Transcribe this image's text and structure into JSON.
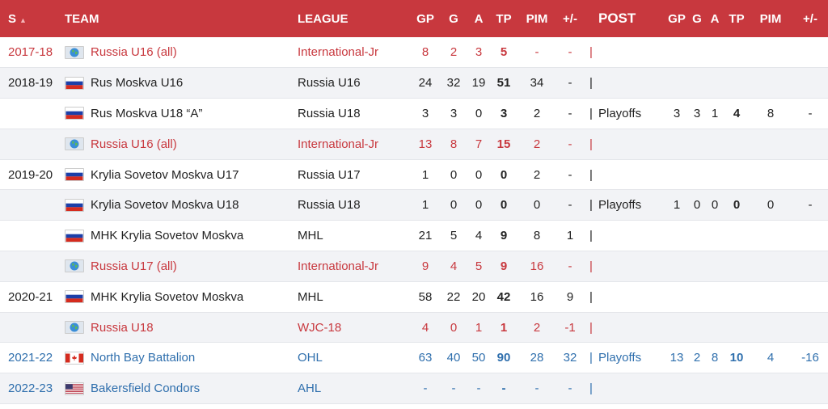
{
  "header": {
    "season": "S",
    "team": "TEAM",
    "league": "LEAGUE",
    "gp": "GP",
    "g": "G",
    "a": "A",
    "tp": "TP",
    "pim": "PIM",
    "pm": "+/-",
    "post": "POST",
    "pgp": "GP",
    "pg": "G",
    "pa": "A",
    "ptp": "TP",
    "ppim": "PIM",
    "ppm": "+/-"
  },
  "rows": [
    {
      "season": "2017-18",
      "flag": "globe",
      "team": "Russia U16 (all)",
      "league": "International-Jr",
      "gp": "8",
      "g": "2",
      "a": "3",
      "tp": "5",
      "pim": "-",
      "pm": "-",
      "sep": "|",
      "post": "",
      "pgp": "",
      "pg": "",
      "pa": "",
      "ptp": "",
      "ppim": "",
      "ppm": ""
    },
    {
      "season": "2018-19",
      "flag": "russia",
      "team": "Rus Moskva U16",
      "league": "Russia U16",
      "gp": "24",
      "g": "32",
      "a": "19",
      "tp": "51",
      "pim": "34",
      "pm": "-",
      "sep": "|",
      "post": "",
      "pgp": "",
      "pg": "",
      "pa": "",
      "ptp": "",
      "ppim": "",
      "ppm": ""
    },
    {
      "season": "",
      "flag": "russia",
      "team": "Rus Moskva U18 “A”",
      "league": "Russia U18",
      "gp": "3",
      "g": "3",
      "a": "0",
      "tp": "3",
      "pim": "2",
      "pm": "-",
      "sep": "|",
      "post": "Playoffs",
      "pgp": "3",
      "pg": "3",
      "pa": "1",
      "ptp": "4",
      "ppim": "8",
      "ppm": "-"
    },
    {
      "season": "",
      "flag": "globe",
      "team": "Russia U16 (all)",
      "league": "International-Jr",
      "gp": "13",
      "g": "8",
      "a": "7",
      "tp": "15",
      "pim": "2",
      "pm": "-",
      "sep": "|",
      "post": "",
      "pgp": "",
      "pg": "",
      "pa": "",
      "ptp": "",
      "ppim": "",
      "ppm": ""
    },
    {
      "season": "2019-20",
      "flag": "russia",
      "team": "Krylia Sovetov Moskva U17",
      "league": "Russia U17",
      "gp": "1",
      "g": "0",
      "a": "0",
      "tp": "0",
      "pim": "2",
      "pm": "-",
      "sep": "|",
      "post": "",
      "pgp": "",
      "pg": "",
      "pa": "",
      "ptp": "",
      "ppim": "",
      "ppm": ""
    },
    {
      "season": "",
      "flag": "russia",
      "team": "Krylia Sovetov Moskva U18",
      "league": "Russia U18",
      "gp": "1",
      "g": "0",
      "a": "0",
      "tp": "0",
      "pim": "0",
      "pm": "-",
      "sep": "|",
      "post": "Playoffs",
      "pgp": "1",
      "pg": "0",
      "pa": "0",
      "ptp": "0",
      "ppim": "0",
      "ppm": "-"
    },
    {
      "season": "",
      "flag": "russia",
      "team": "MHK Krylia Sovetov Moskva",
      "league": "MHL",
      "gp": "21",
      "g": "5",
      "a": "4",
      "tp": "9",
      "pim": "8",
      "pm": "1",
      "sep": "|",
      "post": "",
      "pgp": "",
      "pg": "",
      "pa": "",
      "ptp": "",
      "ppim": "",
      "ppm": ""
    },
    {
      "season": "",
      "flag": "globe",
      "team": "Russia U17 (all)",
      "league": "International-Jr",
      "gp": "9",
      "g": "4",
      "a": "5",
      "tp": "9",
      "pim": "16",
      "pm": "-",
      "sep": "|",
      "post": "",
      "pgp": "",
      "pg": "",
      "pa": "",
      "ptp": "",
      "ppim": "",
      "ppm": ""
    },
    {
      "season": "2020-21",
      "flag": "russia",
      "team": "MHK Krylia Sovetov Moskva",
      "league": "MHL",
      "gp": "58",
      "g": "22",
      "a": "20",
      "tp": "42",
      "pim": "16",
      "pm": "9",
      "sep": "|",
      "post": "",
      "pgp": "",
      "pg": "",
      "pa": "",
      "ptp": "",
      "ppim": "",
      "ppm": ""
    },
    {
      "season": "",
      "flag": "globe",
      "team": "Russia U18",
      "league": "WJC-18",
      "gp": "4",
      "g": "0",
      "a": "1",
      "tp": "1",
      "pim": "2",
      "pm": "-1",
      "sep": "|",
      "post": "",
      "pgp": "",
      "pg": "",
      "pa": "",
      "ptp": "",
      "ppim": "",
      "ppm": ""
    },
    {
      "season": "2021-22",
      "flag": "canada",
      "team": "North Bay Battalion",
      "league": "OHL",
      "gp": "63",
      "g": "40",
      "a": "50",
      "tp": "90",
      "pim": "28",
      "pm": "32",
      "sep": "|",
      "post": "Playoffs",
      "pgp": "13",
      "pg": "2",
      "pa": "8",
      "ptp": "10",
      "ppim": "4",
      "ppm": "-16"
    },
    {
      "season": "2022-23",
      "flag": "usa",
      "team": "Bakersfield Condors",
      "league": "AHL",
      "gp": "-",
      "g": "-",
      "a": "-",
      "tp": "-",
      "pim": "-",
      "pm": "-",
      "sep": "|",
      "post": "",
      "pgp": "",
      "pg": "",
      "pa": "",
      "ptp": "",
      "ppim": "",
      "ppm": ""
    }
  ],
  "colors": {
    "header_bg": "#c8383e",
    "international": "#c8383e",
    "future": "#2f6fad"
  }
}
